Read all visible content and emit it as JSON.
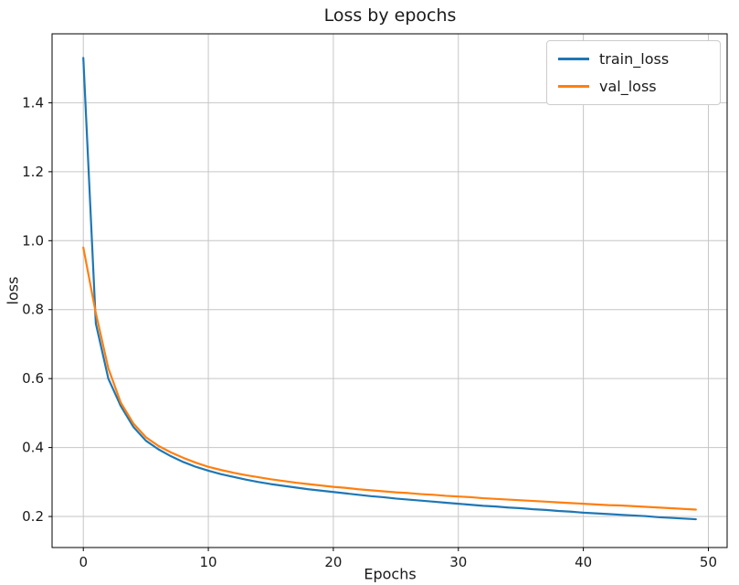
{
  "chart_data": {
    "type": "line",
    "title": "Loss by epochs",
    "xlabel": "Epochs",
    "ylabel": "loss",
    "x": [
      0,
      1,
      2,
      3,
      4,
      5,
      6,
      7,
      8,
      9,
      10,
      11,
      12,
      13,
      14,
      15,
      16,
      17,
      18,
      19,
      20,
      21,
      22,
      23,
      24,
      25,
      26,
      27,
      28,
      29,
      30,
      31,
      32,
      33,
      34,
      35,
      36,
      37,
      38,
      39,
      40,
      41,
      42,
      43,
      44,
      45,
      46,
      47,
      48,
      49
    ],
    "series": [
      {
        "name": "train_loss",
        "color": "#1f77b4",
        "values": [
          1.53,
          0.76,
          0.6,
          0.52,
          0.46,
          0.42,
          0.395,
          0.375,
          0.358,
          0.344,
          0.333,
          0.323,
          0.315,
          0.307,
          0.3,
          0.294,
          0.289,
          0.284,
          0.279,
          0.275,
          0.271,
          0.267,
          0.263,
          0.259,
          0.256,
          0.252,
          0.249,
          0.246,
          0.243,
          0.24,
          0.237,
          0.234,
          0.231,
          0.229,
          0.226,
          0.224,
          0.221,
          0.219,
          0.216,
          0.214,
          0.211,
          0.209,
          0.207,
          0.205,
          0.203,
          0.201,
          0.198,
          0.196,
          0.194,
          0.192
        ]
      },
      {
        "name": "val_loss",
        "color": "#ff7f0e",
        "values": [
          0.98,
          0.79,
          0.63,
          0.53,
          0.47,
          0.43,
          0.405,
          0.386,
          0.37,
          0.356,
          0.344,
          0.335,
          0.327,
          0.32,
          0.314,
          0.308,
          0.303,
          0.298,
          0.294,
          0.29,
          0.286,
          0.283,
          0.279,
          0.276,
          0.273,
          0.27,
          0.268,
          0.265,
          0.263,
          0.26,
          0.258,
          0.256,
          0.253,
          0.251,
          0.249,
          0.247,
          0.245,
          0.243,
          0.241,
          0.239,
          0.237,
          0.235,
          0.233,
          0.232,
          0.23,
          0.228,
          0.226,
          0.224,
          0.222,
          0.22
        ]
      }
    ],
    "xlim": [
      -2.5,
      51.5
    ],
    "ylim": [
      0.11,
      1.6
    ],
    "xticks": [
      0,
      10,
      20,
      30,
      40,
      50
    ],
    "xtick_labels": [
      "0",
      "10",
      "20",
      "30",
      "40",
      "50"
    ],
    "yticks": [
      0.2,
      0.4,
      0.6,
      0.8,
      1.0,
      1.2,
      1.4
    ],
    "ytick_labels": [
      "0.2",
      "0.4",
      "0.6",
      "0.8",
      "1.0",
      "1.2",
      "1.4"
    ],
    "grid": true,
    "grid_color": "#c6c6c6",
    "axis_color": "#000000",
    "legend": {
      "position": "upper right",
      "labels": [
        "train_loss",
        "val_loss"
      ]
    }
  }
}
